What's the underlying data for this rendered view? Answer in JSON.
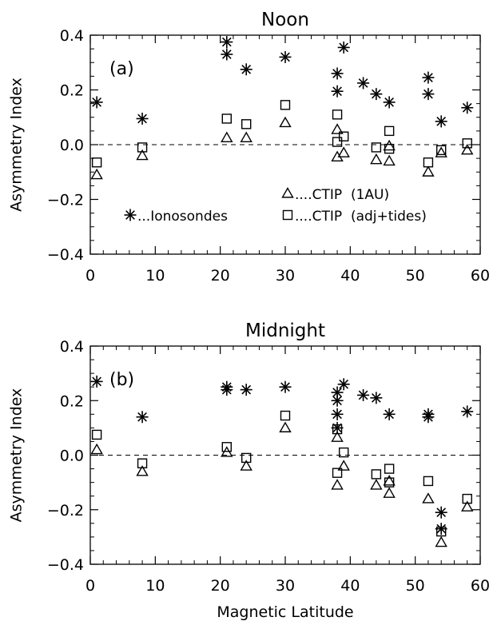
{
  "chart_data": [
    {
      "type": "scatter",
      "title": "Noon",
      "panel_label": "(a)",
      "ylabel": "Asymmetry Index",
      "xlabel": "",
      "xlim": [
        0,
        60
      ],
      "ylim": [
        -0.4,
        0.4
      ],
      "xticks": [
        0,
        10,
        20,
        30,
        40,
        50,
        60
      ],
      "yticks": [
        "0.4",
        "0.2",
        "0.0",
        "−0.2",
        "−0.4"
      ],
      "ytick_values": [
        0.4,
        0.2,
        0.0,
        -0.2,
        -0.4
      ],
      "zero_line": true,
      "legend_entries": [
        {
          "marker": "asterisk",
          "label": "...Ionosondes"
        },
        {
          "marker": "triangle",
          "label": "....CTIP  (1AU)"
        },
        {
          "marker": "square",
          "label": "....CTIP  (adj+tides)"
        }
      ],
      "series": [
        {
          "name": "...Ionosondes",
          "marker": "asterisk",
          "x": [
            1,
            8,
            21,
            21,
            24,
            30,
            38,
            38,
            39,
            42,
            44,
            46,
            52,
            52,
            54,
            58
          ],
          "y": [
            0.155,
            0.095,
            0.375,
            0.33,
            0.275,
            0.32,
            0.26,
            0.195,
            0.355,
            0.225,
            0.185,
            0.155,
            0.245,
            0.185,
            0.085,
            0.135
          ]
        },
        {
          "name": "....CTIP  (1AU)",
          "marker": "triangle",
          "x": [
            1,
            8,
            21,
            24,
            30,
            38,
            38,
            39,
            44,
            46,
            46,
            52,
            54,
            58
          ],
          "y": [
            -0.11,
            -0.04,
            0.025,
            0.025,
            0.08,
            0.055,
            -0.045,
            -0.03,
            -0.055,
            -0.06,
            -0.005,
            -0.1,
            -0.03,
            -0.02
          ]
        },
        {
          "name": "....CTIP  (adj+tides)",
          "marker": "square",
          "x": [
            1,
            8,
            21,
            24,
            30,
            38,
            38,
            39,
            44,
            46,
            46,
            52,
            54,
            58
          ],
          "y": [
            -0.065,
            -0.01,
            0.095,
            0.075,
            0.145,
            0.11,
            0.01,
            0.03,
            -0.01,
            0.05,
            -0.015,
            -0.065,
            -0.02,
            0.005
          ]
        }
      ]
    },
    {
      "type": "scatter",
      "title": "Midnight",
      "panel_label": "(b)",
      "ylabel": "Asymmetry Index",
      "xlabel": "Magnetic Latitude",
      "xlim": [
        0,
        60
      ],
      "ylim": [
        -0.4,
        0.4
      ],
      "xticks": [
        0,
        10,
        20,
        30,
        40,
        50,
        60
      ],
      "yticks": [
        "0.4",
        "0.2",
        "0.0",
        "−0.2",
        "−0.4"
      ],
      "ytick_values": [
        0.4,
        0.2,
        0.0,
        -0.2,
        -0.4
      ],
      "zero_line": true,
      "series": [
        {
          "name": "...Ionosondes",
          "marker": "asterisk",
          "x": [
            1,
            8,
            21,
            21,
            24,
            30,
            38,
            38,
            38,
            38,
            39,
            42,
            44,
            46,
            52,
            52,
            54,
            54,
            58
          ],
          "y": [
            0.27,
            0.14,
            0.25,
            0.24,
            0.24,
            0.25,
            0.23,
            0.2,
            0.15,
            0.1,
            0.26,
            0.22,
            0.21,
            0.15,
            0.15,
            0.14,
            -0.21,
            -0.27,
            0.16
          ]
        },
        {
          "name": "....CTIP  (1AU)",
          "marker": "triangle",
          "x": [
            1,
            8,
            21,
            24,
            30,
            38,
            38,
            39,
            44,
            46,
            46,
            52,
            54,
            58
          ],
          "y": [
            0.02,
            -0.06,
            0.01,
            -0.04,
            0.1,
            0.065,
            -0.11,
            -0.04,
            -0.11,
            -0.14,
            -0.095,
            -0.16,
            -0.32,
            -0.19
          ]
        },
        {
          "name": "....CTIP  (adj+tides)",
          "marker": "square",
          "x": [
            1,
            8,
            21,
            24,
            30,
            38,
            38,
            39,
            44,
            46,
            46,
            52,
            54,
            58
          ],
          "y": [
            0.075,
            -0.03,
            0.03,
            -0.01,
            0.145,
            0.095,
            -0.065,
            0.01,
            -0.07,
            -0.05,
            -0.1,
            -0.095,
            -0.28,
            -0.16
          ]
        }
      ]
    }
  ]
}
